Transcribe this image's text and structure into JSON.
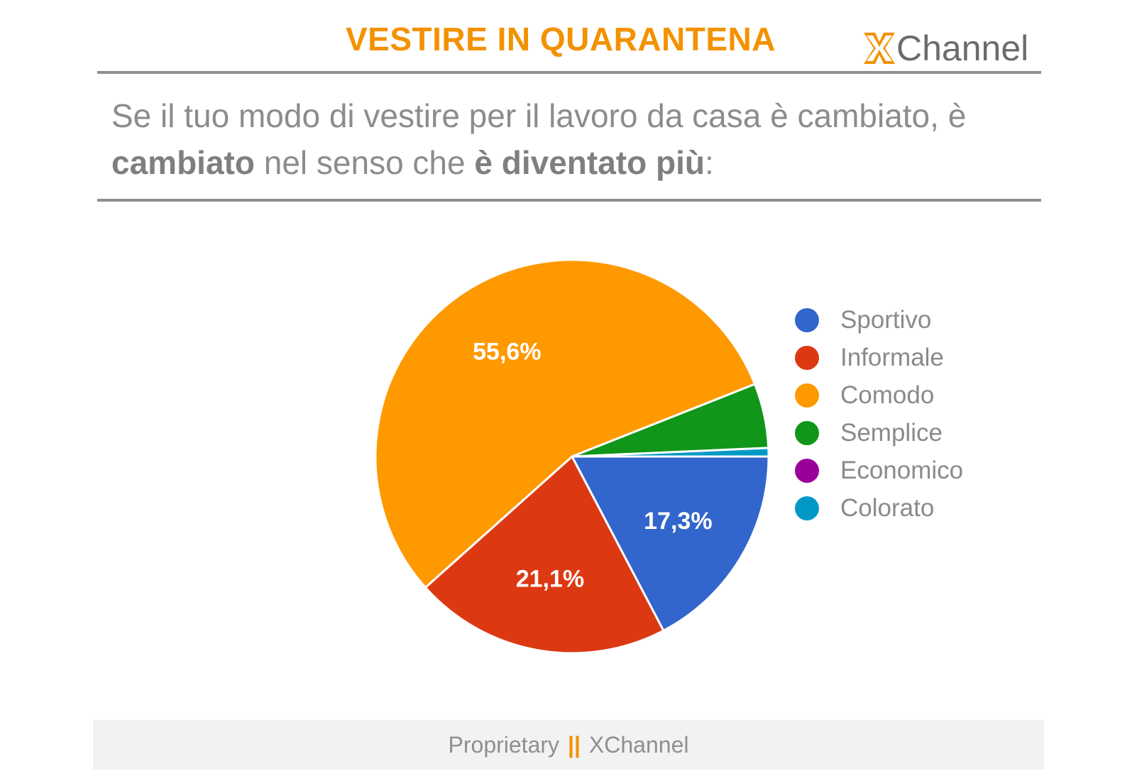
{
  "header": {
    "title": "VESTIRE IN QUARANTENA",
    "logo_text": "Channel",
    "accent_color": "#f39200"
  },
  "question": {
    "part1": "Se il tuo modo di vestire per il lavoro da casa è cambiato, è ",
    "bold1": "cambiato",
    "part2": " nel senso che ",
    "bold2": "è diventato più",
    "part3": ":"
  },
  "chart_data": {
    "type": "pie",
    "title": "",
    "slices": [
      {
        "label": "Sportivo",
        "value": 17.3,
        "data_label": "17,3%",
        "color": "#3366cc"
      },
      {
        "label": "Informale",
        "value": 21.1,
        "data_label": "21,1%",
        "color": "#dc3912"
      },
      {
        "label": "Comodo",
        "value": 55.6,
        "data_label": "55,6%",
        "color": "#ff9900"
      },
      {
        "label": "Semplice",
        "value": 5.3,
        "data_label": "",
        "color": "#109618"
      },
      {
        "label": "Economico",
        "value": 0,
        "data_label": "",
        "color": "#990099"
      },
      {
        "label": "Colorato",
        "value": 0.7,
        "data_label": "",
        "color": "#0099c6"
      }
    ],
    "legend_position": "right"
  },
  "footer": {
    "left": "Proprietary",
    "separator": "||",
    "right": "XChannel"
  }
}
